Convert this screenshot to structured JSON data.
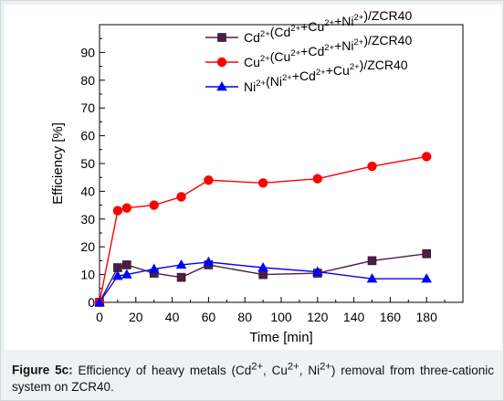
{
  "chart_data": {
    "type": "line",
    "xlabel": "Time [min]",
    "ylabel": "Efficiency [%]",
    "xlim": [
      0,
      200
    ],
    "ylim": [
      0,
      100
    ],
    "xticks": [
      0,
      20,
      40,
      60,
      80,
      100,
      120,
      140,
      160,
      180
    ],
    "yticks": [
      0,
      10,
      20,
      30,
      40,
      50,
      60,
      70,
      80,
      90
    ],
    "legend_position": "top-right",
    "series": [
      {
        "name": "Cd2+(Cd2+ +Cu2+ +Ni2+)/ZCR40",
        "label_parts": [
          [
            "Cd",
            "2+",
            "base"
          ],
          [
            "(Cd",
            "2+",
            "base"
          ],
          [
            "+Cu",
            "2+",
            "base"
          ],
          [
            "+Ni",
            "2+",
            "base"
          ],
          [
            ")/ZCR40",
            "",
            "base"
          ]
        ],
        "color": "#4a1f43",
        "marker": "square",
        "x": [
          0,
          10,
          15,
          30,
          45,
          60,
          90,
          120,
          150,
          180
        ],
        "y": [
          0,
          12.5,
          13.5,
          10.5,
          9,
          13.5,
          10,
          10.5,
          15,
          17.5
        ]
      },
      {
        "name": "Cu2+(Cu2+ +Cd2+ +Ni2+)/ZCR40",
        "label_parts": [
          [
            "Cu",
            "2+",
            "base"
          ],
          [
            "(Cu",
            "2+",
            "base"
          ],
          [
            "+Cd",
            "2+",
            "base"
          ],
          [
            "+Ni",
            "2+",
            "base"
          ],
          [
            ")/ZCR40",
            "",
            "base"
          ]
        ],
        "color": "#ff0000",
        "marker": "circle",
        "x": [
          0,
          10,
          15,
          30,
          45,
          60,
          90,
          120,
          150,
          180
        ],
        "y": [
          0,
          33,
          34,
          35,
          38,
          44,
          43,
          44.5,
          49,
          52.5
        ]
      },
      {
        "name": "Ni2+(Ni2+ +Cd2+ +Cu2+)/ZCR40",
        "label_parts": [
          [
            "Ni",
            "2+",
            "base"
          ],
          [
            "(Ni",
            "2+",
            "base"
          ],
          [
            "+Cd",
            "2+",
            "base"
          ],
          [
            "+Cu",
            "2+",
            "base"
          ],
          [
            ")/ZCR40",
            "",
            "base"
          ]
        ],
        "color": "#0000ff",
        "marker": "triangle",
        "x": [
          0,
          10,
          15,
          30,
          45,
          60,
          90,
          120,
          150,
          180
        ],
        "y": [
          0,
          9.5,
          10,
          12,
          13.5,
          14.5,
          12.5,
          11,
          8.5,
          8.5
        ]
      }
    ]
  },
  "caption": {
    "label": "Figure 5c:",
    "text": "Efficiency of heavy metals (Cd2+, Cu2+, Ni2+) removal from three-cationic system on ZCR40."
  }
}
